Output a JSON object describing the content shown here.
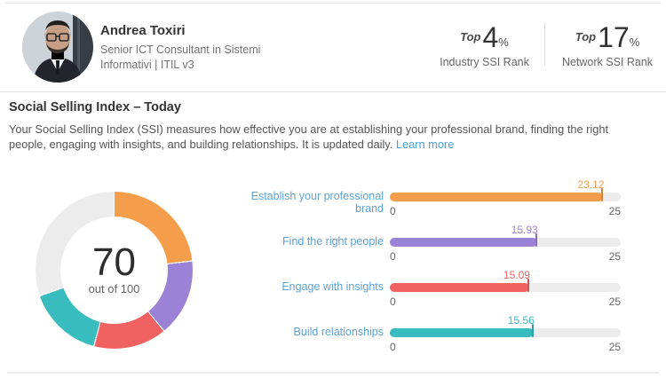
{
  "profile": {
    "name": "Andrea Toxiri",
    "headline_line1": "Senior ICT Consultant in Sistemi",
    "headline_line2": "Informativi | ITIL v3"
  },
  "ranks": [
    {
      "prefix": "Top",
      "value": "4",
      "unit": "%",
      "label": "Industry SSI Rank"
    },
    {
      "prefix": "Top",
      "value": "17",
      "unit": "%",
      "label": "Network SSI Rank"
    }
  ],
  "section": {
    "title": "Social Selling Index – Today",
    "description": "Your Social Selling Index (SSI) measures how effective you are at establishing your professional brand, finding the right people, engaging with insights, and building relationships. It is updated daily.",
    "learn_more_label": "Learn more"
  },
  "colors": {
    "brand_orange": "#F49E4C",
    "brand_purple": "#9C82D6",
    "brand_red": "#F06261",
    "brand_teal": "#38BCBE",
    "remainder_gray": "#ECECEC",
    "track_gray": "#ECECEC",
    "label_blue": "#5DA2D4",
    "link_blue": "#46A2D9"
  },
  "chart_data": [
    {
      "type": "pie",
      "subtype": "donut",
      "center_value": "70",
      "center_sub": "out of 100",
      "total": 70,
      "max": 100,
      "segments": [
        {
          "name": "Establish your professional brand",
          "value": 23.12,
          "color": "#F49E4C"
        },
        {
          "name": "Find the right people",
          "value": 15.93,
          "color": "#9C82D6"
        },
        {
          "name": "Engage with insights",
          "value": 15.09,
          "color": "#F06261"
        },
        {
          "name": "Build relationships",
          "value": 15.56,
          "color": "#38BCBE"
        }
      ],
      "remainder": {
        "value": 30.3,
        "color": "#ECECEC"
      }
    },
    {
      "type": "bar",
      "orientation": "horizontal",
      "xlim": [
        0,
        25
      ],
      "axis_min_label": "0",
      "axis_max_label": "25",
      "grid": false,
      "series": [
        {
          "label": "Establish your professional brand",
          "value": 23.12,
          "value_label": "23.12",
          "color": "#F49E4C"
        },
        {
          "label": "Find the right people",
          "value": 15.93,
          "value_label": "15.93",
          "color": "#9C82D6"
        },
        {
          "label": "Engage with insights",
          "value": 15.09,
          "value_label": "15.09",
          "color": "#F06261"
        },
        {
          "label": "Build relationships",
          "value": 15.56,
          "value_label": "15.56",
          "color": "#38BCBE"
        }
      ]
    }
  ]
}
